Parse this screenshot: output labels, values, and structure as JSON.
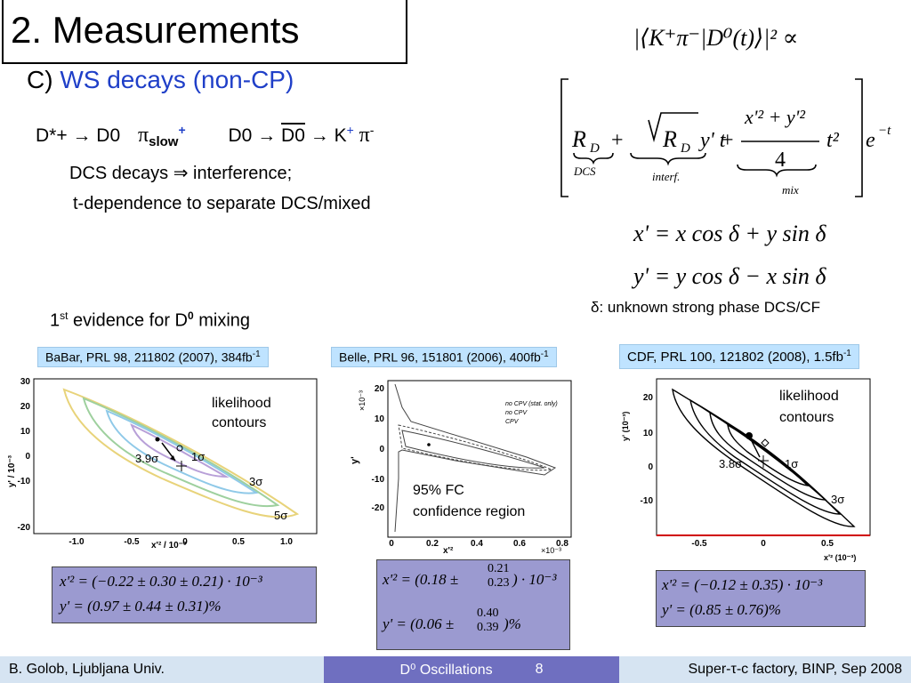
{
  "title": "2. Measurements",
  "subtitle": {
    "label": "C)",
    "text": "WS decays (non-CP)"
  },
  "decay": {
    "dstar": "D*+",
    "arrow": "→",
    "d0": "D0",
    "pi_slow": "π",
    "slow_sub": "slow",
    "slow_sup": "+",
    "d0b": "D0",
    "d0bar": "D0",
    "kaon": "K",
    "k_sup": "+",
    "pion": "π",
    "pi_sup": "-"
  },
  "dcs_line": "DCS decays ⇒ interference;",
  "tdep_line": "t-dependence to separate DCS/mixed",
  "evidence": {
    "pre": "1",
    "sup": "st",
    "mid": " evidence for D",
    "d0sup": "0",
    "post": " mixing"
  },
  "formula_top": {
    "lhs": "|⟨K⁺π⁻|D⁰(t)⟩|²  ∝",
    "rd": "R",
    "rd_sub": "D",
    "dcs_label": "DCS",
    "interf_label": "interf.",
    "mix_label": "mix",
    "mix_num": "x'² + y'²",
    "mix_den": "4",
    "t2": "t²",
    "exp": "e",
    "exp_sup": "−t",
    "plus1": "+",
    "plus2": "+",
    "sqrt_inner": "R",
    "yt": "y' t"
  },
  "xprime": "x' = x cos δ + y sin δ",
  "yprime": "y' = y cos δ − x sin δ",
  "delta_note": "δ: unknown strong phase DCS/CF",
  "panels": [
    {
      "citation": "BaBar, PRL 98, 211802 (2007), 384fb",
      "cite_sup": "-1",
      "annotation1": "likelihood",
      "annotation2": "contours",
      "xlabel": "x'² / 10⁻³",
      "ylabel": "y' / 10⁻³",
      "xticks": [
        "-1.0",
        "-0.5",
        "0",
        "0.5",
        "1.0"
      ],
      "yticks": [
        "30",
        "20",
        "10",
        "0",
        "-10",
        "-20"
      ],
      "labels": [
        "3.9σ",
        "1σ",
        "3σ",
        "5σ"
      ],
      "result_x": "x'² = (−0.22 ± 0.30 ± 0.21) · 10⁻³",
      "result_y": "y' = (0.97 ± 0.44 ± 0.31)%"
    },
    {
      "citation": "Belle, PRL 96, 151801 (2006), 400fb",
      "cite_sup": "-1",
      "annotation1": "95% FC",
      "annotation2": "confidence region",
      "xlabel": "x'²",
      "ylabel": "y'",
      "yunit": "×10⁻³",
      "xunit": "×10⁻³",
      "xticks": [
        "0",
        "0.2",
        "0.4",
        "0.6",
        "0.8"
      ],
      "yticks": [
        "20",
        "10",
        "0",
        "-10",
        "-20"
      ],
      "legend": [
        "no CPV (stat. only)",
        "no CPV",
        "CPV"
      ],
      "result_x_main": "x'² = (0.18 ±",
      "result_x_up": "0.21",
      "result_x_dn": "0.23",
      "result_x_tail": ") · 10⁻³",
      "result_y_main": "y' = (0.06 ±",
      "result_y_up": "0.40",
      "result_y_dn": "0.39",
      "result_y_tail": ")%"
    },
    {
      "citation": "CDF, PRL 100, 121802 (2008), 1.5fb",
      "cite_sup": "-1",
      "annotation1": "likelihood",
      "annotation2": "contours",
      "xlabel": "x'² (10⁻³)",
      "ylabel": "y' (10⁻³)",
      "xticks": [
        "-0.5",
        "0",
        "0.5"
      ],
      "yticks": [
        "20",
        "10",
        "0",
        "-10"
      ],
      "labels": [
        "3.8σ",
        "1σ",
        "3σ"
      ],
      "result_x": "x'² = (−0.12 ± 0.35) · 10⁻³",
      "result_y": "y' = (0.85 ± 0.76)%"
    }
  ],
  "footer": {
    "left": "B. Golob, Ljubljana Univ.",
    "center": "D⁰ Oscillations",
    "page": "8",
    "right": "Super-τ-c factory, BINP, Sep 2008"
  },
  "colors": {
    "accent_blue": "#1f3fc8",
    "cite_bg": "#bfe3ff",
    "result_bg": "#9b9ad0",
    "footer_dark": "#1f2a6e",
    "footer_mid": "#6f6fc0"
  }
}
